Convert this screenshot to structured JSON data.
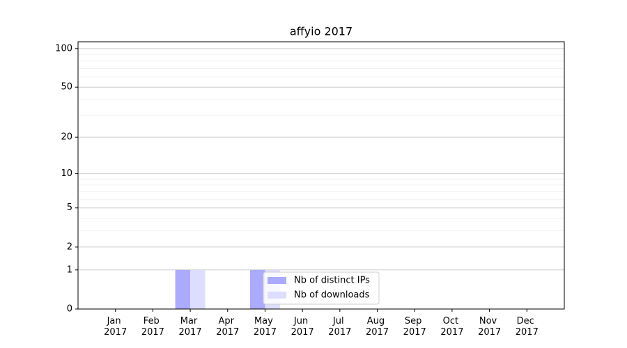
{
  "chart_data": {
    "type": "bar",
    "title": "affyio 2017",
    "categories": [
      "Jan 2017",
      "Feb 2017",
      "Mar 2017",
      "Apr 2017",
      "May 2017",
      "Jun 2017",
      "Jul 2017",
      "Aug 2017",
      "Sep 2017",
      "Oct 2017",
      "Nov 2017",
      "Dec 2017"
    ],
    "series": [
      {
        "name": "Nb of distinct IPs",
        "color": "#aaaaff",
        "values": [
          0,
          0,
          1,
          0,
          1,
          0,
          0,
          0,
          0,
          0,
          0,
          0
        ]
      },
      {
        "name": "Nb of downloads",
        "color": "#ddddff",
        "values": [
          0,
          0,
          1,
          0,
          1,
          0,
          0,
          0,
          0,
          0,
          0,
          0
        ]
      }
    ],
    "yscale": "log1p",
    "ylim": [
      0,
      113
    ],
    "yticks": [
      0,
      1,
      2,
      5,
      10,
      20,
      50,
      100
    ],
    "yminorticks": [
      3,
      4,
      6,
      7,
      8,
      9,
      30,
      40,
      60,
      70,
      80,
      90
    ],
    "grid": true,
    "legend": "lower center"
  }
}
